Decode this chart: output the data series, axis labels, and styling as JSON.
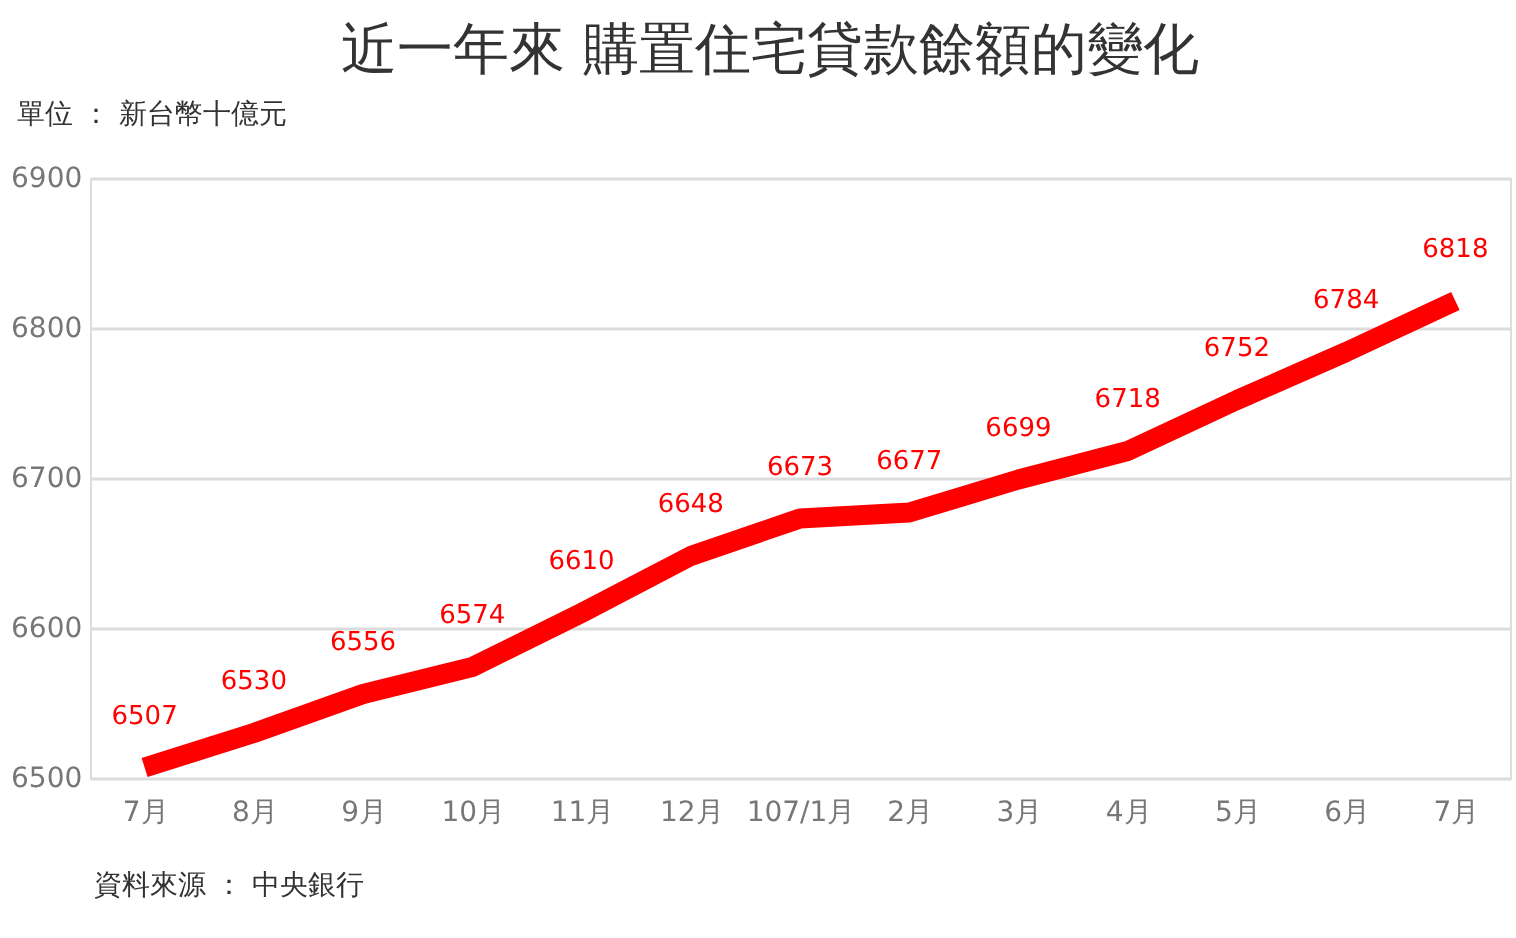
{
  "chart_data": {
    "type": "line",
    "title": "近一年來 購置住宅貸款餘額的變化",
    "ylabel": "單位 ： 新台幣十億元",
    "categories": [
      "7月",
      "8月",
      "9月",
      "10月",
      "11月",
      "12月",
      "107/1月",
      "2月",
      "3月",
      "4月",
      "5月",
      "6月",
      "7月"
    ],
    "series": [
      {
        "color": "#ff0000",
        "values": [
          6507,
          6530,
          6556,
          6574,
          6610,
          6648,
          6673,
          6677,
          6699,
          6718,
          6752,
          6784,
          6818
        ]
      }
    ],
    "ylim": [
      6500,
      6900
    ],
    "yticks": [
      6500,
      6600,
      6700,
      6800,
      6900
    ],
    "grid": "y",
    "data_labels": true,
    "marker": "none",
    "line_style": "solid",
    "annotations": [
      "資料來源 ： 中央銀行"
    ]
  }
}
